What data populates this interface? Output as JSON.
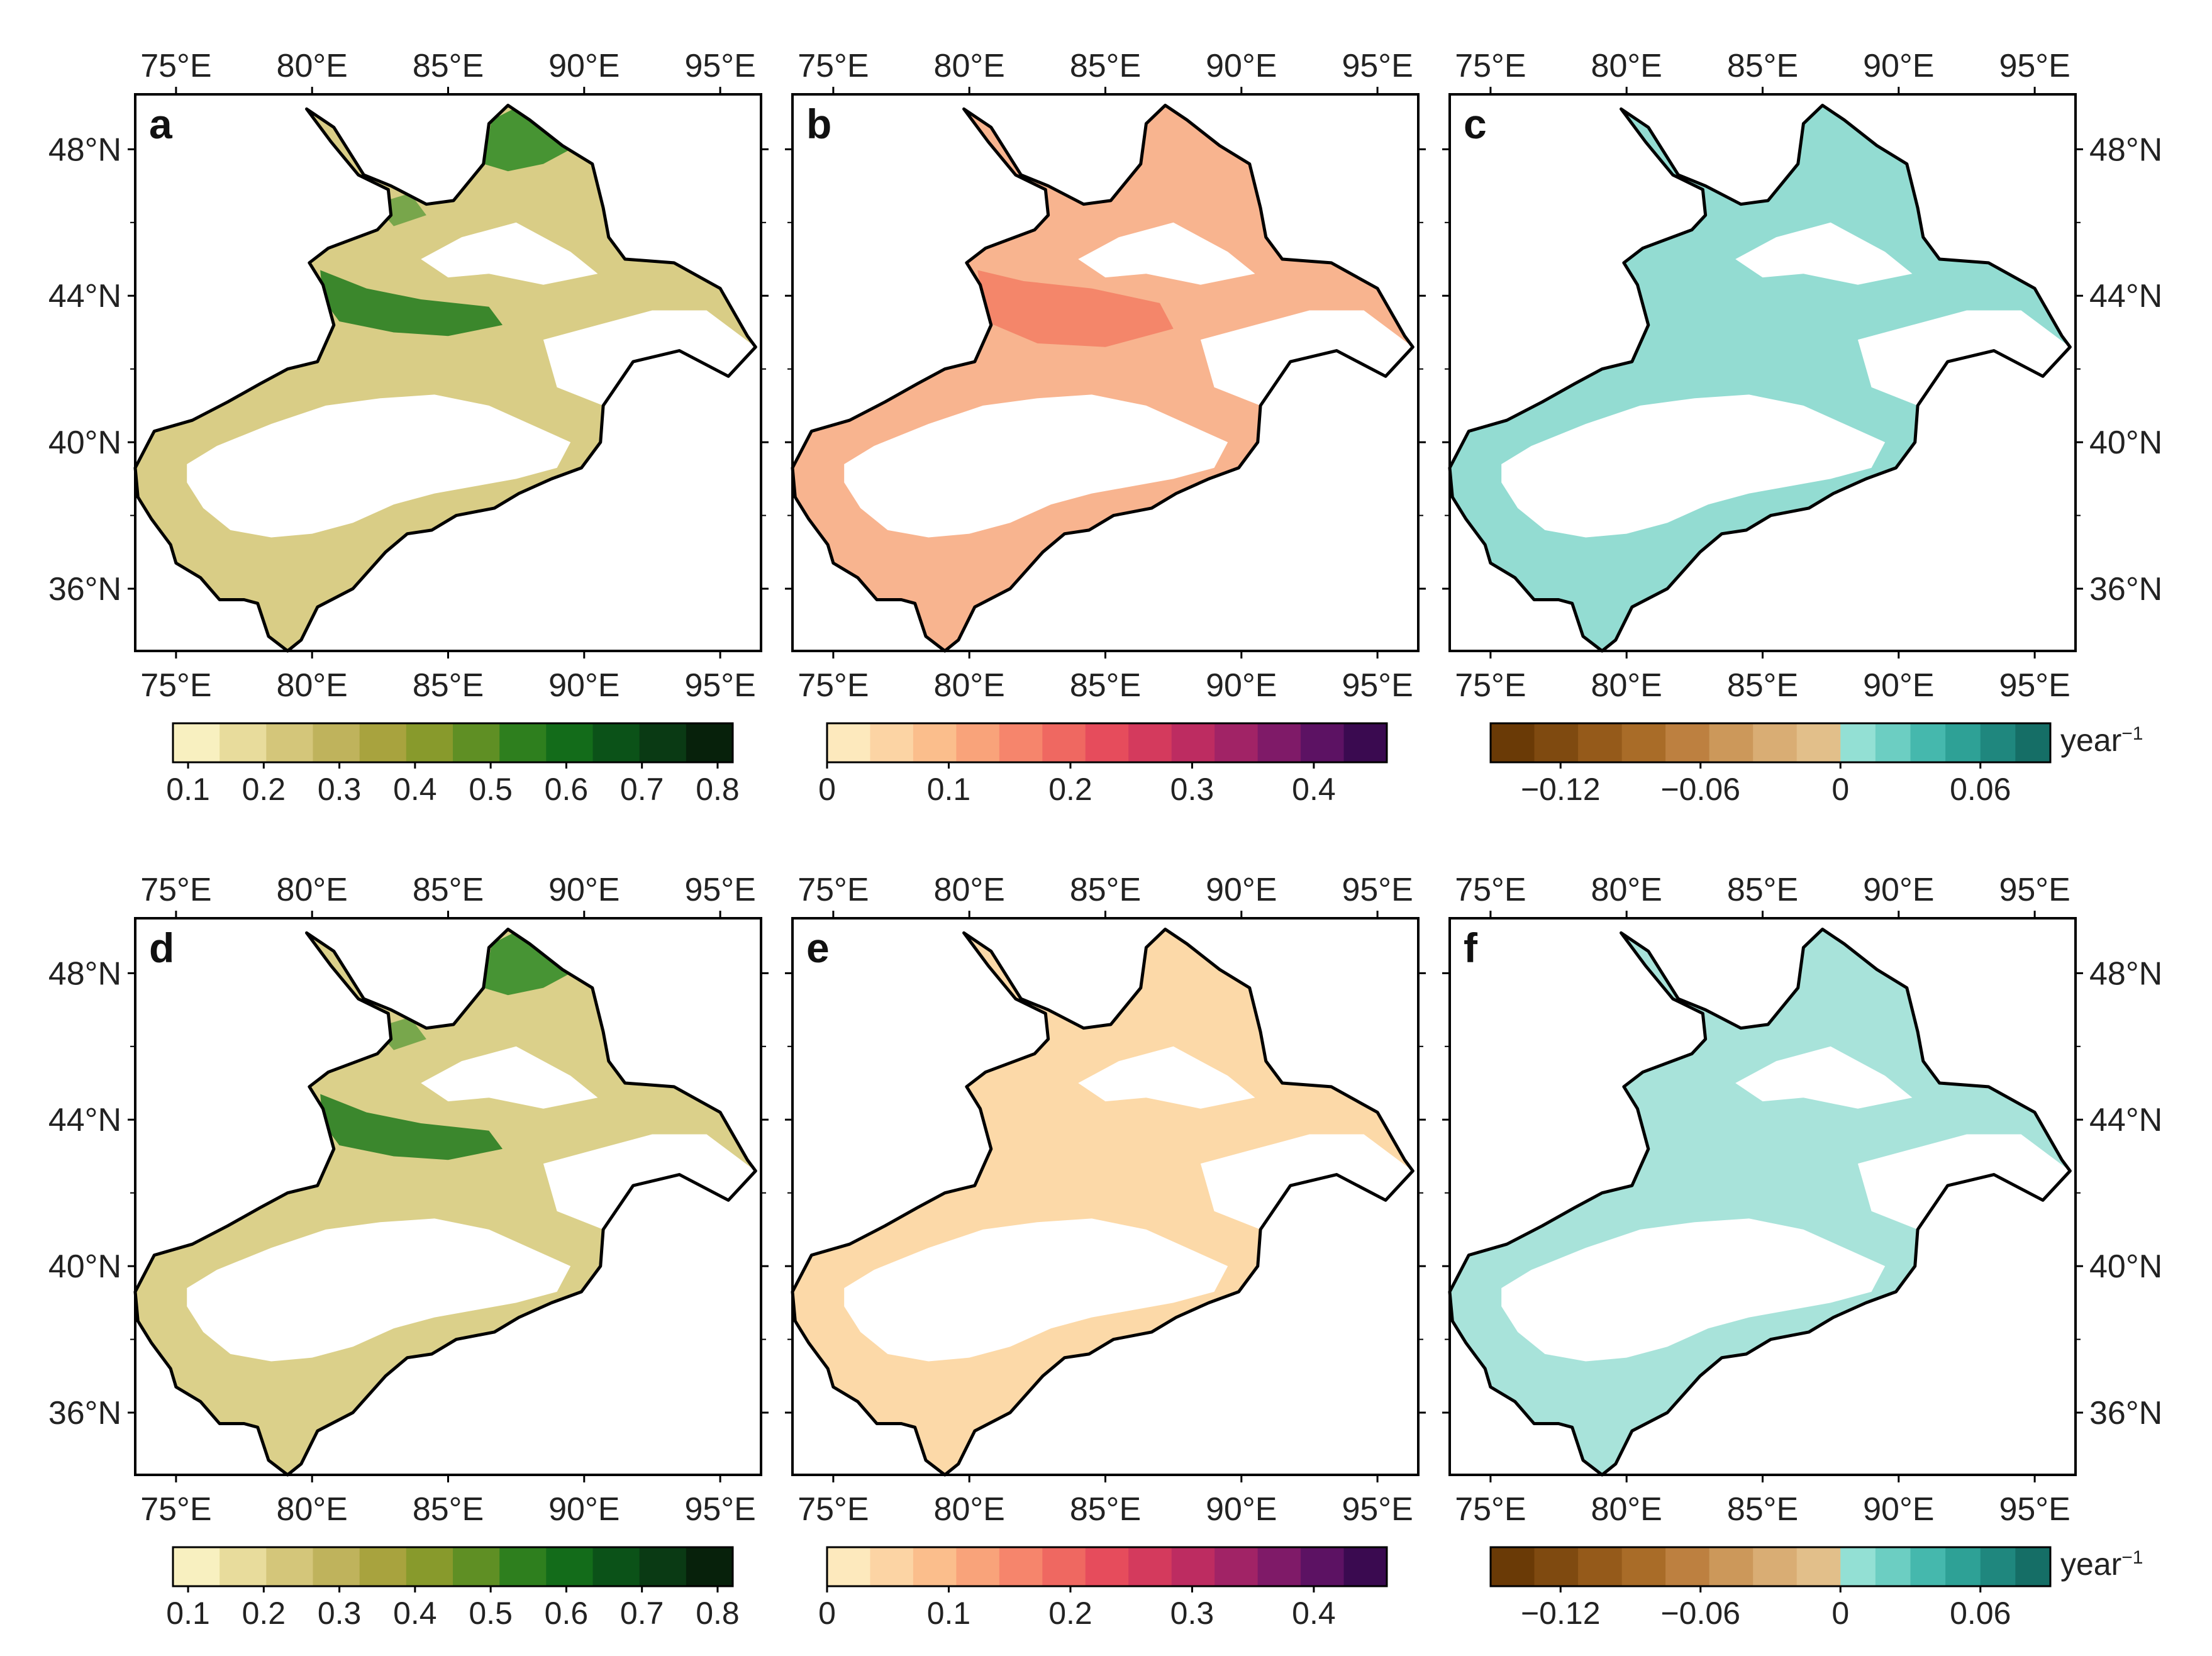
{
  "figure": {
    "title": "",
    "lon_ticks": [
      "75°E",
      "80°E",
      "85°E",
      "90°E",
      "95°E"
    ],
    "lat_ticks": [
      "48°N",
      "44°N",
      "40°N",
      "36°N"
    ],
    "lon_values": [
      75,
      80,
      85,
      90,
      95
    ],
    "lat_values": [
      48,
      44,
      40,
      36
    ],
    "lon_range": [
      73.5,
      96.5
    ],
    "lat_range": [
      34.3,
      49.5
    ],
    "region_outline": [
      [
        79.8,
        49.1
      ],
      [
        80.8,
        48.6
      ],
      [
        81.9,
        47.3
      ],
      [
        82.9,
        47.0
      ],
      [
        84.2,
        46.5
      ],
      [
        85.2,
        46.6
      ],
      [
        86.3,
        47.6
      ],
      [
        86.5,
        48.7
      ],
      [
        87.2,
        49.2
      ],
      [
        88.0,
        48.8
      ],
      [
        89.2,
        48.1
      ],
      [
        90.3,
        47.6
      ],
      [
        90.7,
        46.4
      ],
      [
        90.9,
        45.6
      ],
      [
        91.5,
        45.0
      ],
      [
        93.3,
        44.9
      ],
      [
        95.0,
        44.2
      ],
      [
        96.0,
        42.9
      ],
      [
        96.3,
        42.6
      ],
      [
        95.3,
        41.8
      ],
      [
        93.5,
        42.5
      ],
      [
        91.8,
        42.2
      ],
      [
        90.7,
        41.0
      ],
      [
        90.6,
        40.0
      ],
      [
        89.9,
        39.3
      ],
      [
        88.8,
        39.0
      ],
      [
        87.6,
        38.6
      ],
      [
        86.7,
        38.2
      ],
      [
        85.3,
        38.0
      ],
      [
        84.4,
        37.6
      ],
      [
        83.5,
        37.5
      ],
      [
        82.7,
        37.0
      ],
      [
        81.5,
        36.0
      ],
      [
        80.2,
        35.5
      ],
      [
        79.6,
        34.6
      ],
      [
        79.1,
        34.3
      ],
      [
        78.4,
        34.7
      ],
      [
        78.0,
        35.6
      ],
      [
        77.5,
        35.7
      ],
      [
        76.6,
        35.7
      ],
      [
        75.9,
        36.3
      ],
      [
        75.0,
        36.7
      ],
      [
        74.8,
        37.2
      ],
      [
        74.5,
        37.5
      ],
      [
        74.1,
        37.9
      ],
      [
        73.6,
        38.5
      ],
      [
        73.5,
        39.3
      ],
      [
        74.2,
        40.3
      ],
      [
        75.6,
        40.6
      ],
      [
        76.9,
        41.1
      ],
      [
        78.1,
        41.6
      ],
      [
        79.1,
        42.0
      ],
      [
        80.2,
        42.2
      ],
      [
        80.8,
        43.2
      ],
      [
        80.4,
        44.3
      ],
      [
        79.9,
        44.9
      ],
      [
        80.6,
        45.3
      ],
      [
        82.4,
        45.8
      ],
      [
        82.9,
        46.2
      ],
      [
        82.8,
        46.9
      ],
      [
        81.7,
        47.3
      ],
      [
        80.7,
        48.2
      ],
      [
        79.8,
        49.1
      ]
    ],
    "value_colorbar": {
      "ticks": [
        "0.1",
        "0.2",
        "0.3",
        "0.4",
        "0.5",
        "0.6",
        "0.7",
        "0.8"
      ],
      "tick_values": [
        0.1,
        0.2,
        0.3,
        0.4,
        0.5,
        0.6,
        0.7,
        0.8
      ],
      "range": [
        0.08,
        0.82
      ],
      "colors": [
        "#f8f0c0",
        "#e8dc9c",
        "#d4c67a",
        "#bfb35c",
        "#a8a33e",
        "#889a2c",
        "#5f8f24",
        "#2e7f1e",
        "#136c1a",
        "#0b5218",
        "#0a3a14",
        "#07210b"
      ]
    },
    "std_colorbar": {
      "ticks": [
        "0",
        "0.1",
        "0.2",
        "0.3",
        "0.4"
      ],
      "tick_values": [
        0,
        0.1,
        0.2,
        0.3,
        0.4
      ],
      "range": [
        0,
        0.46
      ],
      "colors": [
        "#fde9bd",
        "#fcd4a4",
        "#fbbe8c",
        "#f9a37a",
        "#f6856c",
        "#ef6861",
        "#e64c5c",
        "#d43a5d",
        "#bd2c61",
        "#a12366",
        "#7f1a68",
        "#5c1263",
        "#3a0a50"
      ]
    },
    "trend_colorbar": {
      "ticks": [
        "−0.12",
        "−0.06",
        "0",
        "0.06"
      ],
      "tick_values": [
        -0.12,
        -0.06,
        0,
        0.06
      ],
      "range": [
        -0.15,
        0.09
      ],
      "negative_colors": [
        "#6a3a06",
        "#7f4a10",
        "#955a1a",
        "#a96c28",
        "#bd8040",
        "#cc985a",
        "#d9ad74",
        "#e2bf8a"
      ],
      "positive_colors": [
        "#93e0d4",
        "#6ccec2",
        "#45b8ad",
        "#2ea196",
        "#1f877e",
        "#156e66"
      ],
      "unit": "year",
      "unit_sup": "−1"
    },
    "panels": [
      {
        "id": "a",
        "label": "a",
        "scheme": "value",
        "fill_color": "#d9cd86"
      },
      {
        "id": "b",
        "label": "b",
        "scheme": "std",
        "fill_color": "#f8b48f"
      },
      {
        "id": "c",
        "label": "c",
        "scheme": "trend",
        "fill_color": "#93dcd2"
      },
      {
        "id": "d",
        "label": "d",
        "scheme": "value",
        "fill_color": "#dbd08a"
      },
      {
        "id": "e",
        "label": "e",
        "scheme": "std",
        "fill_color": "#fcd9a8"
      },
      {
        "id": "f",
        "label": "f",
        "scheme": "trend",
        "fill_color": "#a8e3da"
      }
    ]
  }
}
